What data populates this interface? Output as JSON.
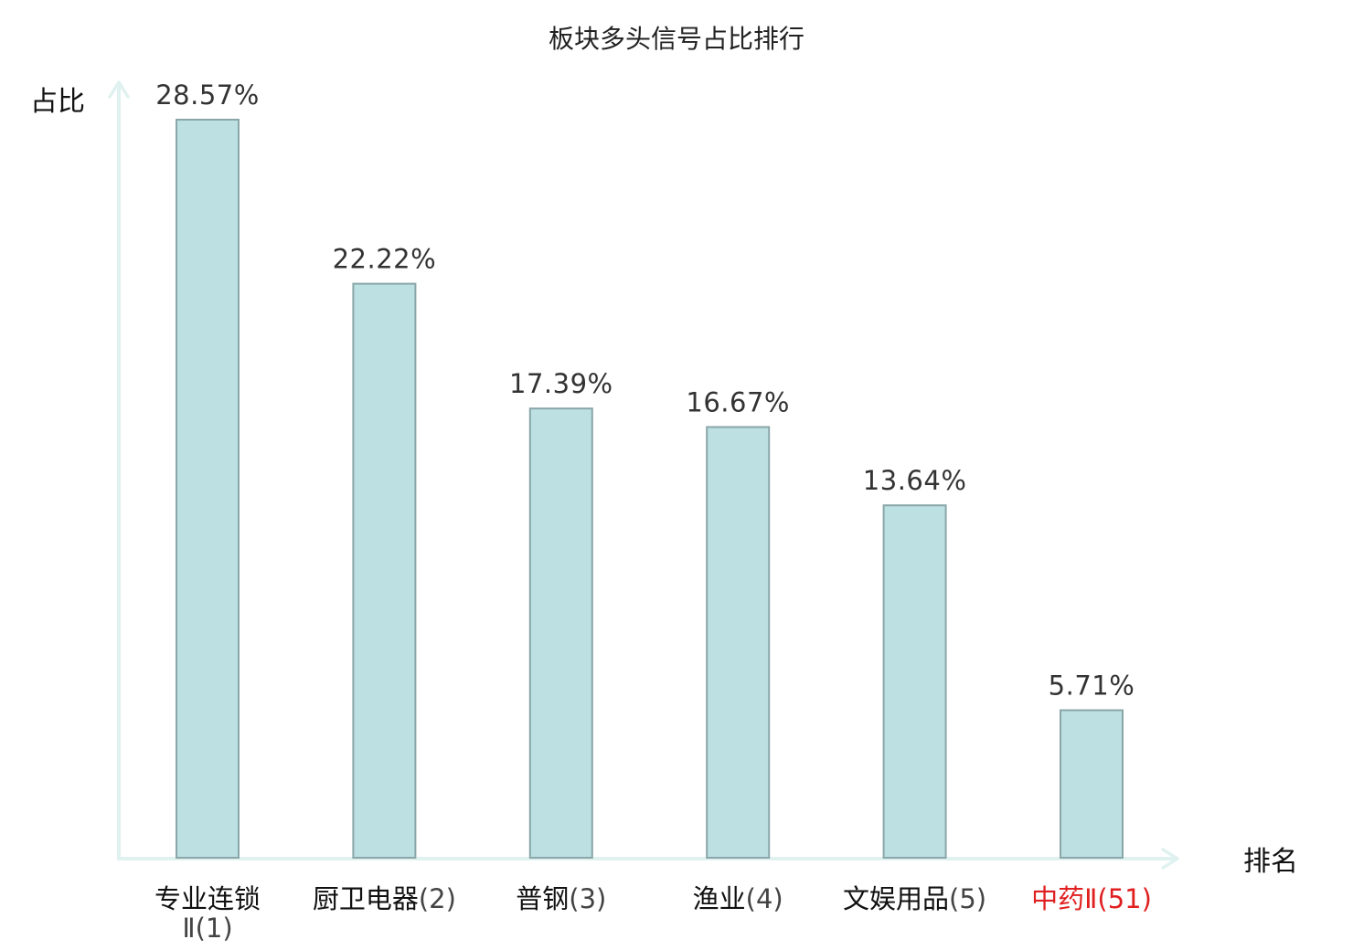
{
  "chart_data": {
    "type": "bar",
    "title": "板块多头信号占比排行",
    "xlabel": "排名",
    "ylabel": "占比",
    "ylim": [
      0,
      30
    ],
    "grid": false,
    "legend": "none",
    "categories": [
      {
        "name": "专业连锁Ⅱ",
        "rank": "(1)",
        "highlight": false
      },
      {
        "name": "厨卫电器",
        "rank": "(2)",
        "highlight": false
      },
      {
        "name": "普钢",
        "rank": "(3)",
        "highlight": false
      },
      {
        "name": "渔业",
        "rank": "(4)",
        "highlight": false
      },
      {
        "name": "文娱用品",
        "rank": "(5)",
        "highlight": false
      },
      {
        "name": "中药Ⅱ",
        "rank": "(51)",
        "highlight": true
      }
    ],
    "values": [
      28.57,
      22.22,
      17.39,
      16.67,
      13.64,
      5.71
    ],
    "data_labels": [
      "28.57%",
      "22.22%",
      "17.39%",
      "16.67%",
      "13.64%",
      "5.71%"
    ]
  },
  "colors": {
    "bar_fill": "#bde0e2",
    "bar_stroke": "#8aa6a8",
    "axis": "#e0f2ef",
    "highlight_text": "#e02020",
    "text": "#111111",
    "value_text": "#333333"
  }
}
